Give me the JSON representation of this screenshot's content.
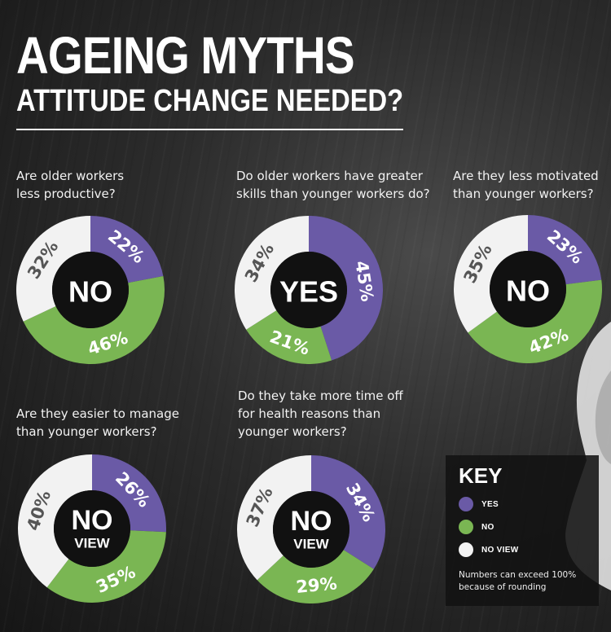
{
  "title": "AGEING MYTHS",
  "subtitle": "ATTITUDE CHANGE NEEDED?",
  "colors": {
    "yes": "#6a5aa6",
    "no": "#7ab653",
    "no_view": "#f2f2f2",
    "hole": "#111111"
  },
  "chart_data": [
    {
      "type": "pie",
      "question": "Are older workers\nless productive?",
      "answer": "NO",
      "slices": [
        {
          "name": "YES",
          "value": 22,
          "label": "22%"
        },
        {
          "name": "NO",
          "value": 46,
          "label": "46%"
        },
        {
          "name": "NO VIEW",
          "value": 32,
          "label": "32%"
        }
      ]
    },
    {
      "type": "pie",
      "question": "Do older workers have greater\nskills than younger workers do?",
      "answer": "YES",
      "slices": [
        {
          "name": "YES",
          "value": 45,
          "label": "45%"
        },
        {
          "name": "NO",
          "value": 21,
          "label": "21%"
        },
        {
          "name": "NO VIEW",
          "value": 34,
          "label": "34%"
        }
      ]
    },
    {
      "type": "pie",
      "question": "Are they less motivated\nthan younger workers?",
      "answer": "NO",
      "slices": [
        {
          "name": "YES",
          "value": 23,
          "label": "23%"
        },
        {
          "name": "NO",
          "value": 42,
          "label": "42%"
        },
        {
          "name": "NO VIEW",
          "value": 35,
          "label": "35%"
        }
      ]
    },
    {
      "type": "pie",
      "question": "Are they easier to manage\nthan younger workers?",
      "answer": "NO VIEW",
      "slices": [
        {
          "name": "YES",
          "value": 26,
          "label": "26%"
        },
        {
          "name": "NO",
          "value": 35,
          "label": "35%"
        },
        {
          "name": "NO VIEW",
          "value": 40,
          "label": "40%"
        }
      ]
    },
    {
      "type": "pie",
      "question": "Do they take more time off\nfor health reasons than\nyounger workers?",
      "answer": "NO VIEW",
      "slices": [
        {
          "name": "YES",
          "value": 34,
          "label": "34%"
        },
        {
          "name": "NO",
          "value": 29,
          "label": "29%"
        },
        {
          "name": "NO VIEW",
          "value": 37,
          "label": "37%"
        }
      ]
    }
  ],
  "key": {
    "title": "KEY",
    "items": [
      {
        "label": "YES",
        "color": "#6a5aa6"
      },
      {
        "label": "NO",
        "color": "#7ab653"
      },
      {
        "label": "NO VIEW",
        "color": "#f2f2f2"
      }
    ],
    "note": "Numbers can exceed 100% because of rounding"
  }
}
